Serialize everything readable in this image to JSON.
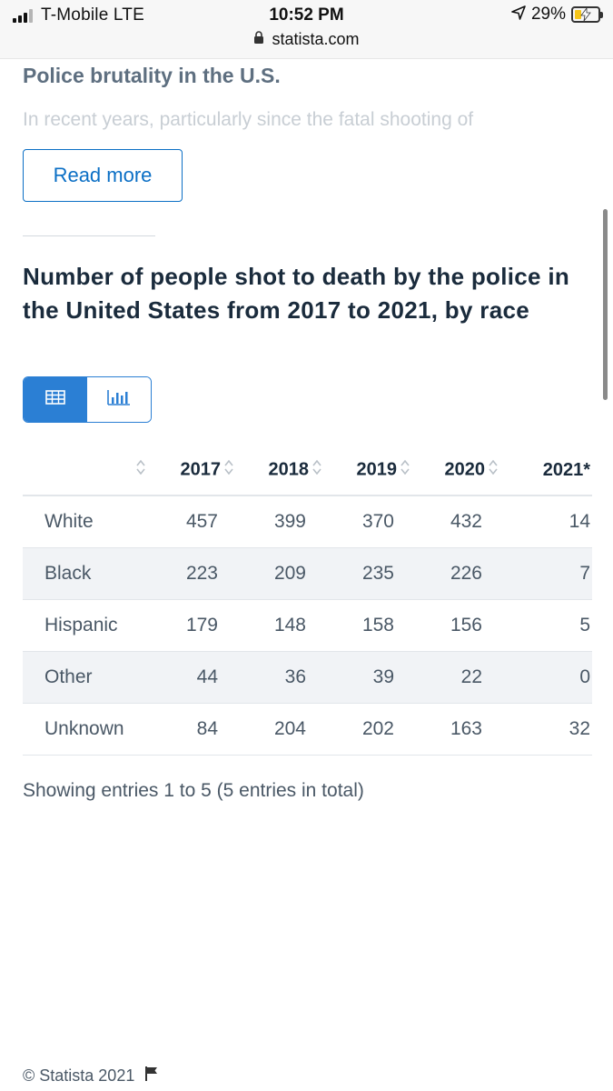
{
  "status_bar": {
    "carrier": "T-Mobile  LTE",
    "time": "10:52 PM",
    "url": "statista.com",
    "battery": "29%",
    "battery_level": 0.29
  },
  "article": {
    "heading": "Police brutality in the U.S.",
    "teaser": "In recent years, particularly since the fatal shooting of",
    "read_more": "Read more"
  },
  "chart": {
    "title": "Number of people shot to death by the police in the United States from 2017 to 2021, by race",
    "toggle": {
      "table_icon": "table-icon",
      "chart_icon": "bar-chart-icon",
      "active": "table"
    }
  },
  "table": {
    "headers": [
      "",
      "2017",
      "2018",
      "2019",
      "2020",
      "2021*"
    ],
    "rows": [
      {
        "label": "White",
        "values": [
          "457",
          "399",
          "370",
          "432",
          "14"
        ]
      },
      {
        "label": "Black",
        "values": [
          "223",
          "209",
          "235",
          "226",
          "7"
        ]
      },
      {
        "label": "Hispanic",
        "values": [
          "179",
          "148",
          "158",
          "156",
          "5"
        ]
      },
      {
        "label": "Other",
        "values": [
          "44",
          "36",
          "39",
          "22",
          "0"
        ]
      },
      {
        "label": "Unknown",
        "values": [
          "84",
          "204",
          "202",
          "163",
          "32"
        ]
      }
    ],
    "entries_text": "Showing entries 1 to 5 (5 entries in total)"
  },
  "chart_data": {
    "type": "table",
    "title": "Number of people shot to death by the police in the United States from 2017 to 2021, by race",
    "columns": [
      "2017",
      "2018",
      "2019",
      "2020",
      "2021*"
    ],
    "series": [
      {
        "name": "White",
        "values": [
          457,
          399,
          370,
          432,
          14
        ]
      },
      {
        "name": "Black",
        "values": [
          223,
          209,
          235,
          226,
          7
        ]
      },
      {
        "name": "Hispanic",
        "values": [
          179,
          148,
          158,
          156,
          5
        ]
      },
      {
        "name": "Other",
        "values": [
          44,
          36,
          39,
          22,
          0
        ]
      },
      {
        "name": "Unknown",
        "values": [
          84,
          204,
          202,
          163,
          32
        ]
      }
    ]
  },
  "footer": {
    "copyright": "© Statista 2021"
  },
  "colors": {
    "accent": "#2b7fd4",
    "link": "#0b6fc5",
    "title": "#1a2b3c",
    "text": "#4a5866"
  }
}
